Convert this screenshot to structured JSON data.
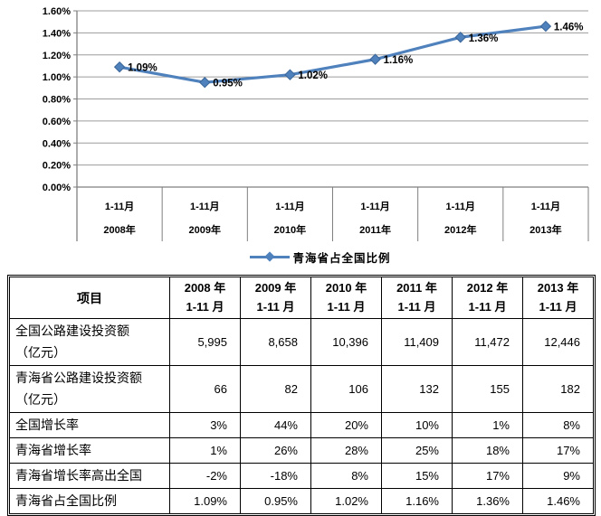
{
  "chart_data": {
    "type": "line",
    "title": "",
    "xlabel": "",
    "ylabel": "",
    "ylim": [
      0,
      1.6
    ],
    "grid": true,
    "legend_position": "bottom",
    "yticks": [
      {
        "value": 0.0,
        "label": "0.00%"
      },
      {
        "value": 0.2,
        "label": "0.20%"
      },
      {
        "value": 0.4,
        "label": "0.40%"
      },
      {
        "value": 0.6,
        "label": "0.60%"
      },
      {
        "value": 0.8,
        "label": "0.80%"
      },
      {
        "value": 1.0,
        "label": "1.00%"
      },
      {
        "value": 1.2,
        "label": "1.20%"
      },
      {
        "value": 1.4,
        "label": "1.40%"
      },
      {
        "value": 1.6,
        "label": "1.60%"
      }
    ],
    "categories": [
      {
        "line1": "1-11月",
        "line2": "2008年"
      },
      {
        "line1": "1-11月",
        "line2": "2009年"
      },
      {
        "line1": "1-11月",
        "line2": "2010年"
      },
      {
        "line1": "1-11月",
        "line2": "2011年"
      },
      {
        "line1": "1-11月",
        "line2": "2012年"
      },
      {
        "line1": "1-11月",
        "line2": "2013年"
      }
    ],
    "series": [
      {
        "name": "青海省占全国比例",
        "values": [
          1.09,
          0.95,
          1.02,
          1.16,
          1.36,
          1.46
        ],
        "labels": [
          "1.09%",
          "0.95%",
          "1.02%",
          "1.16%",
          "1.36%",
          "1.46%"
        ]
      }
    ],
    "colors": {
      "line": "#4F81BD",
      "line_dark": "#3A6598",
      "grid": "#9C9C9C",
      "axis": "#7F7F7F",
      "text": "#000000"
    }
  },
  "table": {
    "header": {
      "item_label": "项目",
      "columns": [
        {
          "year": "2008 年",
          "period": "1-11 月"
        },
        {
          "year": "2009 年",
          "period": "1-11 月"
        },
        {
          "year": "2010 年",
          "period": "1-11 月"
        },
        {
          "year": "2011 年",
          "period": "1-11 月"
        },
        {
          "year": "2012 年",
          "period": "1-11 月"
        },
        {
          "year": "2013 年",
          "period": "1-11 月"
        }
      ]
    },
    "rows": [
      {
        "label": "全国公路建设投资额",
        "label2": "（亿元）",
        "values": [
          "5,995",
          "8,658",
          "10,396",
          "11,409",
          "11,472",
          "12,446"
        ]
      },
      {
        "label": "青海省公路建设投资额",
        "label2": "（亿元）",
        "values": [
          "66",
          "82",
          "106",
          "132",
          "155",
          "182"
        ]
      },
      {
        "label": "全国增长率",
        "values": [
          "3%",
          "44%",
          "20%",
          "10%",
          "1%",
          "8%"
        ]
      },
      {
        "label": "青海省增长率",
        "values": [
          "1%",
          "26%",
          "28%",
          "25%",
          "18%",
          "17%"
        ]
      },
      {
        "label": "青海省增长率高出全国",
        "values": [
          "-2%",
          "-18%",
          "8%",
          "15%",
          "17%",
          "9%"
        ]
      },
      {
        "label": "青海省占全国比例",
        "values": [
          "1.09%",
          "0.95%",
          "1.02%",
          "1.16%",
          "1.36%",
          "1.46%"
        ]
      }
    ]
  }
}
